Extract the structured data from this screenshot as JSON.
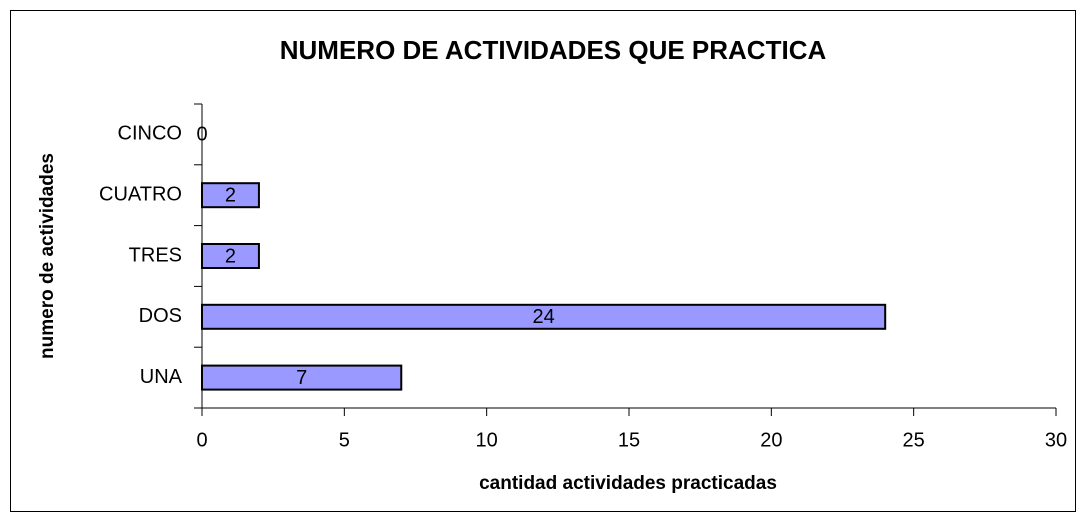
{
  "chart_data": {
    "type": "bar",
    "orientation": "horizontal",
    "title": "NUMERO DE ACTIVIDADES QUE PRACTICA",
    "x_label": "cantidad actividades practicadas",
    "y_label": "numero de  actividades",
    "categories": [
      "UNA",
      "DOS",
      "TRES",
      "CUATRO",
      "CINCO"
    ],
    "values": [
      7,
      24,
      2,
      2,
      0
    ],
    "color": "#9999ff",
    "xlim": [
      0,
      30
    ],
    "xticks": [
      0,
      5,
      10,
      15,
      20,
      25,
      30
    ],
    "grid": false
  }
}
